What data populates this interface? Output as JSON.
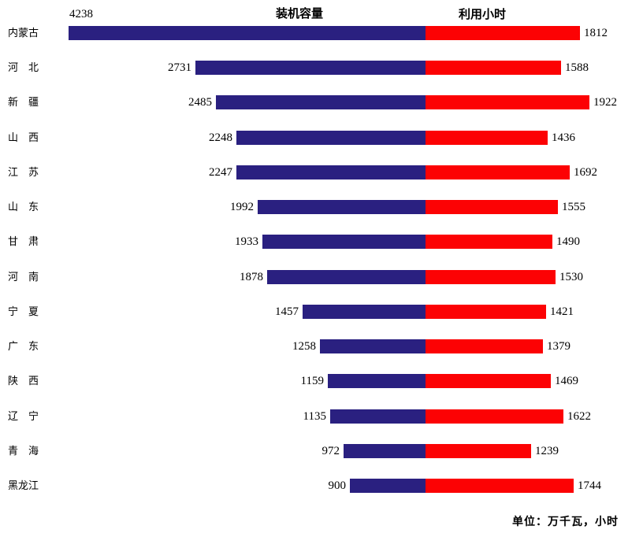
{
  "header": {
    "capacity_label": "装机容量",
    "hours_label": "利用小时"
  },
  "footer": {
    "unit_note": "单位：万千瓦，小时"
  },
  "colors": {
    "capacity_bar": "#2A2080",
    "hours_bar": "#FC0204"
  },
  "chart_data": {
    "type": "bar",
    "subtype": "diverging-horizontal",
    "title": "",
    "legend_position": "top",
    "value_labels": "outside-end",
    "grid": false,
    "axis_lines": false,
    "unit_note": "单位：万千瓦，小时",
    "categories": [
      "内蒙古",
      "河　北",
      "新　疆",
      "山　西",
      "江　苏",
      "山　东",
      "甘　肃",
      "河　南",
      "宁　夏",
      "广　东",
      "陕　西",
      "辽　宁",
      "青　海",
      "黑龙江"
    ],
    "series": [
      {
        "name": "装机容量",
        "direction": "left",
        "color": "#2A2080",
        "values": [
          4238,
          2731,
          2485,
          2248,
          2247,
          1992,
          1933,
          1878,
          1457,
          1258,
          1159,
          1135,
          972,
          900
        ]
      },
      {
        "name": "利用小时",
        "direction": "right",
        "color": "#FC0204",
        "values": [
          1812,
          1588,
          1922,
          1436,
          1692,
          1555,
          1490,
          1530,
          1421,
          1379,
          1469,
          1622,
          1239,
          1744
        ]
      }
    ]
  }
}
